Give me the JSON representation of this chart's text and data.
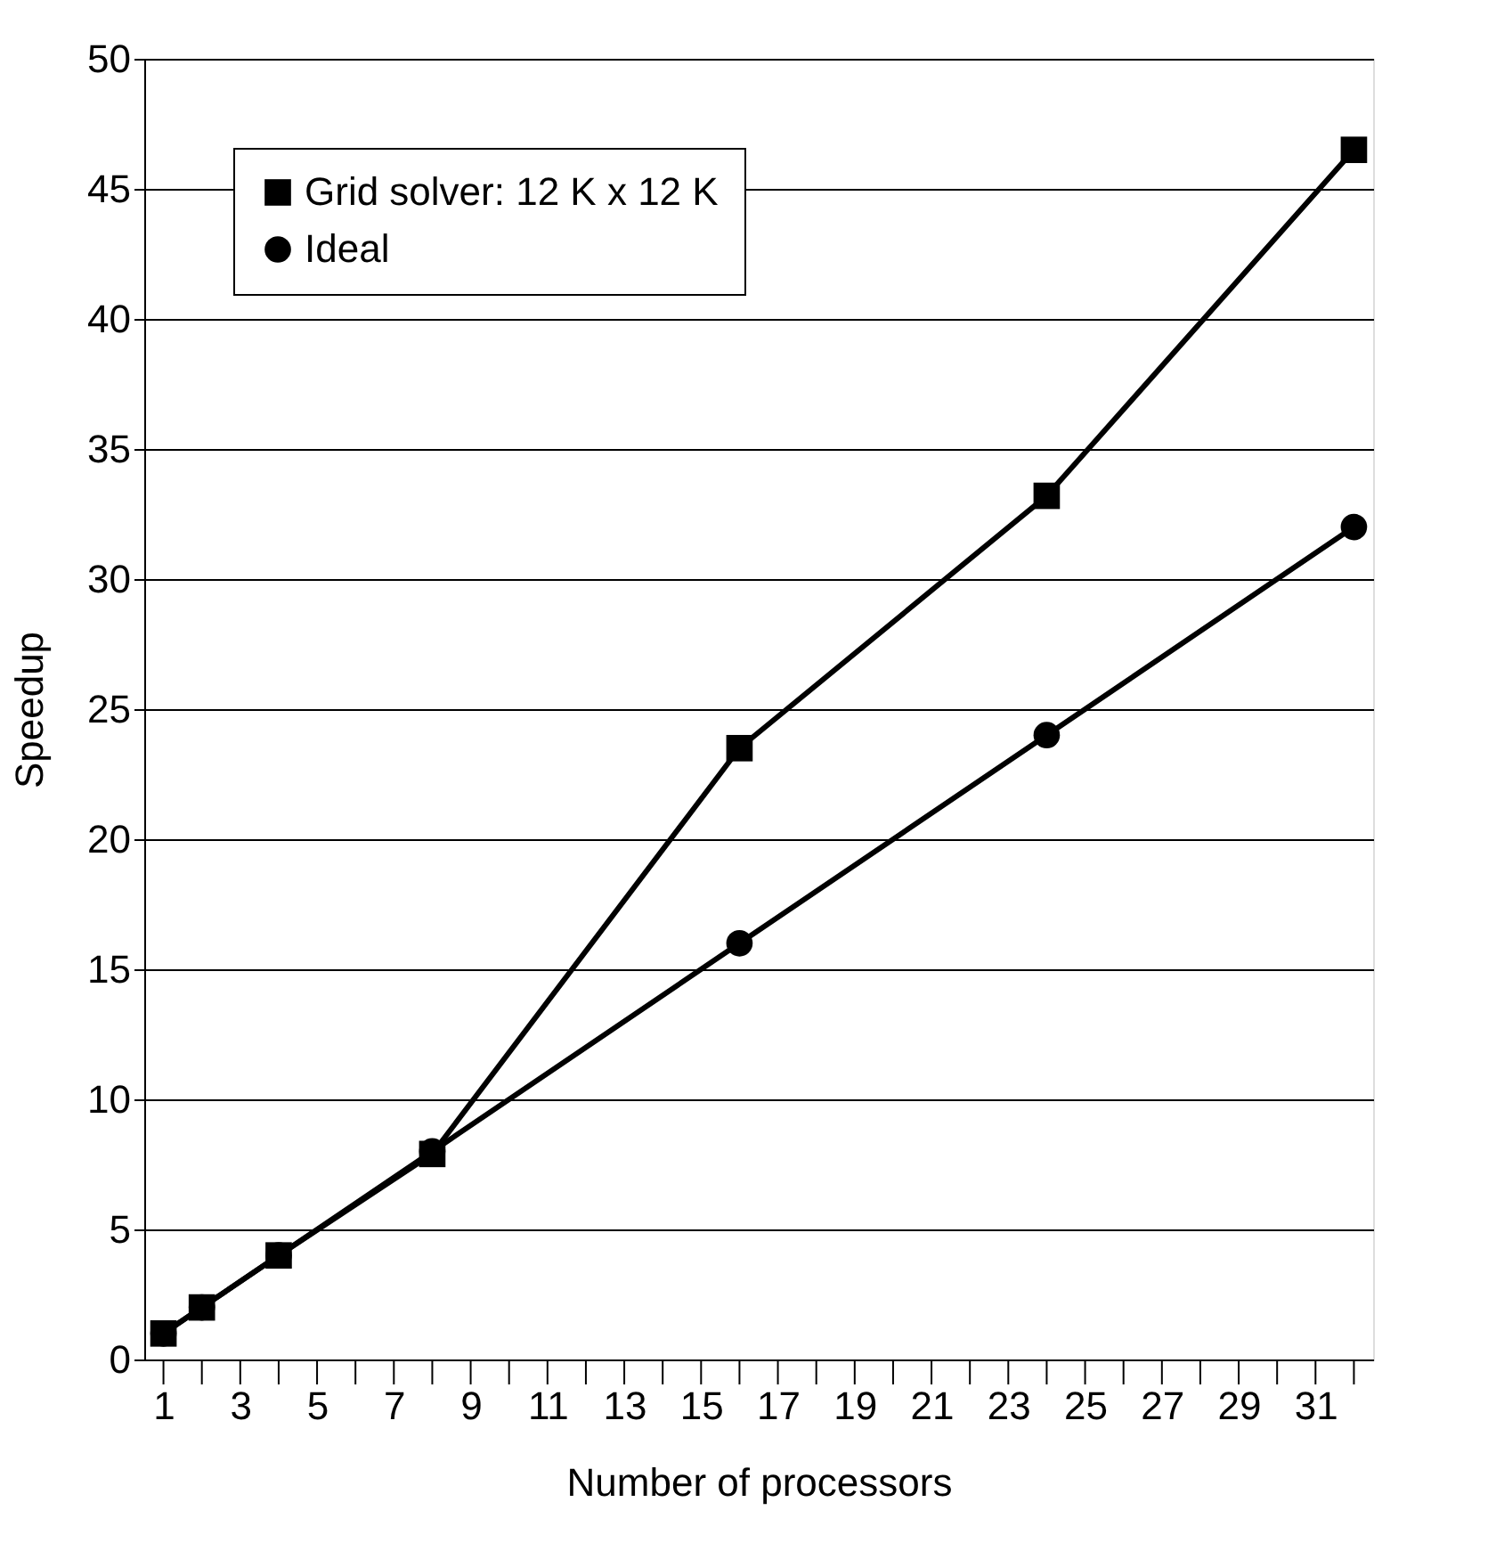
{
  "chart_data": {
    "type": "line",
    "xlabel": "Number of processors",
    "ylabel": "Speedup",
    "x": [
      1,
      2,
      4,
      8,
      16,
      24,
      32
    ],
    "series": [
      {
        "name": "Grid solver: 12 K x 12 K",
        "color": "#000000",
        "marker": "square",
        "values": [
          1,
          2,
          4,
          7.9,
          23.5,
          33.2,
          46.5
        ]
      },
      {
        "name": "Ideal",
        "color": "#000000",
        "marker": "circle",
        "values": [
          1,
          2,
          4,
          8,
          16,
          24,
          32
        ]
      }
    ],
    "xlim": [
      0.5,
      32.5
    ],
    "xticks": [
      1,
      {
        "value": 2,
        "label": null
      },
      3,
      {
        "value": 4,
        "label": null
      },
      5,
      {
        "value": 6,
        "label": null
      },
      7,
      {
        "value": 8,
        "label": null
      },
      9,
      {
        "value": 10,
        "label": null
      },
      11,
      {
        "value": 12,
        "label": null
      },
      13,
      {
        "value": 14,
        "label": null
      },
      15,
      {
        "value": 16,
        "label": null
      },
      17,
      {
        "value": 18,
        "label": null
      },
      19,
      {
        "value": 20,
        "label": null
      },
      21,
      {
        "value": 22,
        "label": null
      },
      23,
      {
        "value": 24,
        "label": null
      },
      25,
      {
        "value": 26,
        "label": null
      },
      27,
      {
        "value": 28,
        "label": null
      },
      29,
      {
        "value": 30,
        "label": null
      },
      31,
      {
        "value": 32,
        "label": null
      }
    ],
    "ylim": [
      0,
      50
    ],
    "yticks": [
      0,
      5,
      10,
      15,
      20,
      25,
      30,
      35,
      40,
      45,
      50
    ],
    "grid": "y",
    "legend": "top left",
    "line_style": "solid"
  }
}
